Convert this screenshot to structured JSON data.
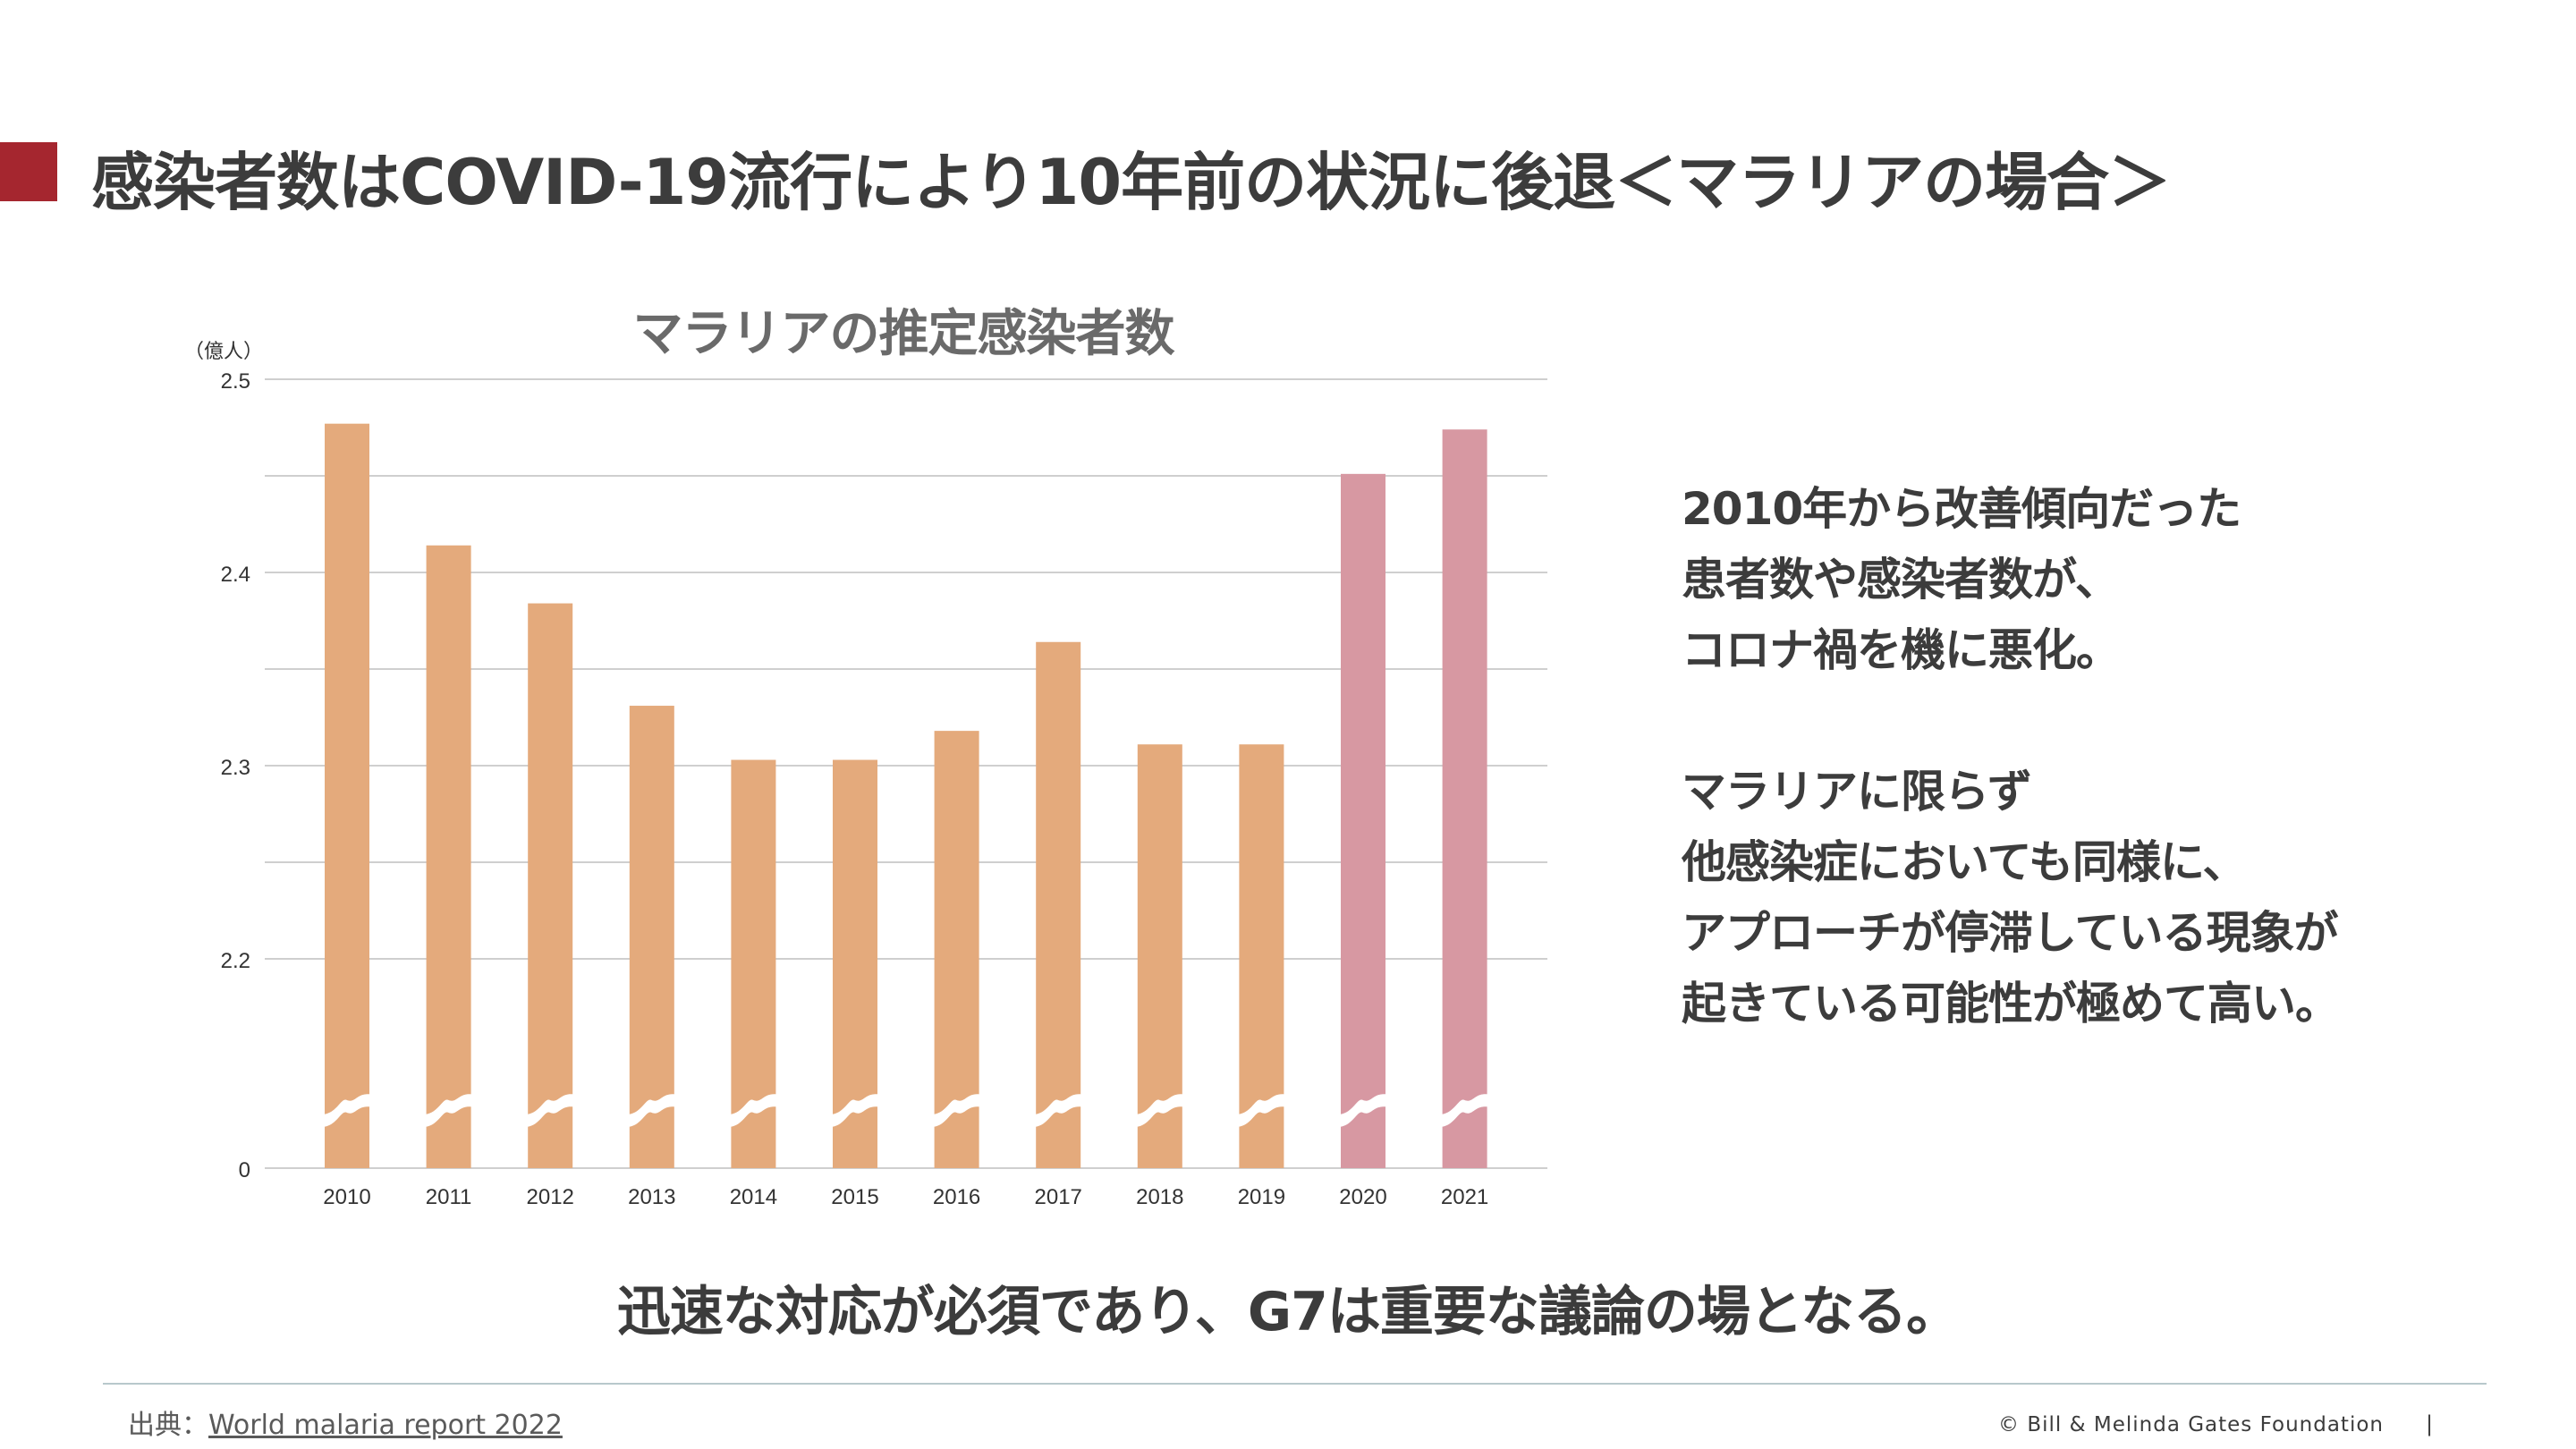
{
  "header": {
    "title": "感染者数はCOVID-19流行により10年前の状況に後退＜マラリアの場合＞"
  },
  "colors": {
    "accent": "#a5262f",
    "bar_default": "#e4aa7c",
    "bar_covid": "#d798a2",
    "grid": "#cfcfcf",
    "break_mark": "#ffffff"
  },
  "chart_data": {
    "type": "bar",
    "title": "マラリアの推定感染者数",
    "unit_label": "（億人）",
    "xlabel": "",
    "ylabel": "（億人）",
    "axis_break": {
      "from": 0,
      "to": 2.15
    },
    "ylim": [
      2.15,
      2.5
    ],
    "yticks": [
      {
        "value": 2.5,
        "label": "2.5"
      },
      {
        "value": 2.4,
        "label": "2.4"
      },
      {
        "value": 2.3,
        "label": "2.3"
      },
      {
        "value": 2.2,
        "label": "2.2"
      }
    ],
    "minor_gridlines": [
      2.45,
      2.35,
      2.25
    ],
    "baseline_label": "0",
    "categories": [
      "2010",
      "2011",
      "2012",
      "2013",
      "2014",
      "2015",
      "2016",
      "2017",
      "2018",
      "2019",
      "2020",
      "2021"
    ],
    "values": [
      2.477,
      2.414,
      2.384,
      2.331,
      2.303,
      2.303,
      2.318,
      2.364,
      2.311,
      2.311,
      2.451,
      2.474
    ],
    "highlight": [
      false,
      false,
      false,
      false,
      false,
      false,
      false,
      false,
      false,
      false,
      true,
      true
    ]
  },
  "side_text": {
    "lines": [
      "2010年から改善傾向だった",
      "患者数や感染者数が、",
      "コロナ禍を機に悪化。",
      "",
      "マラリアに限らず",
      "他感染症においても同様に、",
      "アプローチが停滞している現象が",
      "起きている可能性が極めて高い。"
    ]
  },
  "conclusion": "迅速な対応が必須であり、G7は重要な議論の場となる。",
  "footer": {
    "source_prefix": "出典：",
    "source_link": "World malaria report 2022",
    "copyright": "© Bill & Melinda Gates Foundation",
    "separator": "|"
  }
}
